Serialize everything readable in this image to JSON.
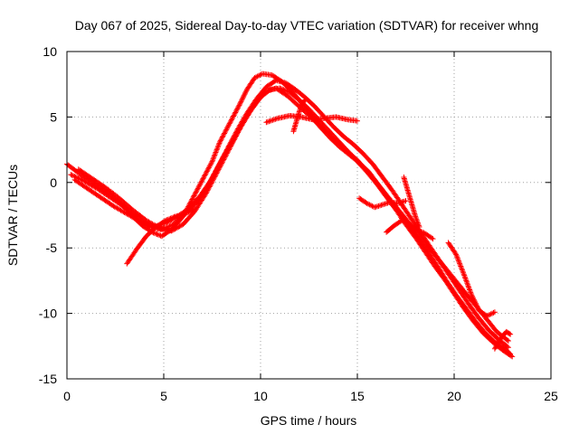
{
  "chart_data": {
    "type": "scatter",
    "title": "Day 067 of 2025, Sidereal Day-to-day VTEC variation (SDTVAR) for receiver whng",
    "xlabel": "GPS time / hours",
    "ylabel": "SDTVAR / TECUs",
    "xlim": [
      0,
      25
    ],
    "ylim": [
      -15,
      10
    ],
    "x_ticks": [
      0,
      5,
      10,
      15,
      20,
      25
    ],
    "y_ticks": [
      -15,
      -10,
      -5,
      0,
      5,
      10
    ],
    "x_tick_labels": [
      "0",
      "5",
      "10",
      "15",
      "20",
      "25"
    ],
    "y_tick_labels": [
      "-15",
      "-10",
      "-5",
      "0",
      "5",
      "10"
    ],
    "grid": true,
    "marker": "+",
    "series": [
      {
        "name": "SDTVAR",
        "color": "#ff0000",
        "tracks": [
          {
            "x": [
              0.0,
              0.8,
              1.5,
              2.2,
              2.9,
              3.4,
              3.9,
              4.4,
              4.9,
              5.4,
              6.0,
              6.5,
              7.0,
              7.5,
              7.9,
              8.4,
              8.9,
              9.3,
              9.7,
              10.1,
              10.6,
              11.1,
              11.6,
              12.1,
              12.6,
              13.1,
              13.6,
              14.1,
              14.6,
              15.1,
              15.6,
              16.1,
              16.6,
              17.1,
              17.6,
              18.1,
              18.6,
              19.1,
              19.6,
              20.1,
              20.6,
              21.1,
              21.6,
              22.1,
              22.6,
              22.9
            ],
            "y": [
              1.4,
              0.5,
              -0.2,
              -0.9,
              -1.8,
              -2.6,
              -3.3,
              -3.8,
              -4.1,
              -3.6,
              -2.6,
              -1.2,
              0.2,
              1.6,
              3.1,
              4.5,
              5.9,
              7.1,
              8.0,
              8.3,
              8.2,
              7.7,
              7.0,
              6.1,
              5.2,
              4.2,
              3.4,
              2.7,
              2.1,
              1.5,
              0.8,
              -0.2,
              -1.2,
              -2.2,
              -3.1,
              -4.2,
              -5.2,
              -6.3,
              -7.5,
              -8.6,
              -9.6,
              -10.6,
              -11.5,
              -12.2,
              -12.7,
              -13.1
            ]
          },
          {
            "x": [
              0.2,
              0.9,
              1.6,
              2.3,
              3.0,
              3.7,
              4.3,
              4.9,
              5.5,
              6.1,
              6.7,
              7.3,
              7.8,
              8.3,
              8.8,
              9.3,
              9.8,
              10.3,
              10.8,
              11.3,
              11.8,
              12.3,
              12.8,
              13.3,
              13.8,
              14.3,
              14.8,
              15.3,
              15.8,
              16.3,
              16.8,
              17.3,
              17.8,
              18.3,
              18.8,
              19.3,
              19.8,
              20.3,
              20.8,
              21.3,
              21.8,
              22.3,
              22.8
            ],
            "y": [
              0.6,
              0.1,
              -0.5,
              -1.2,
              -1.9,
              -2.7,
              -3.4,
              -3.6,
              -3.2,
              -2.4,
              -1.5,
              -0.2,
              1.2,
              2.6,
              4.0,
              5.3,
              6.4,
              7.3,
              7.8,
              7.6,
              7.1,
              6.5,
              5.8,
              5.0,
              4.2,
              3.5,
              2.9,
              2.2,
              1.4,
              0.4,
              -0.6,
              -1.7,
              -2.8,
              -3.9,
              -5.0,
              -6.1,
              -7.2,
              -8.3,
              -9.4,
              -10.4,
              -11.3,
              -12.0,
              -12.6
            ]
          },
          {
            "x": [
              0.4,
              1.0,
              1.7,
              2.4,
              3.1,
              3.8,
              4.5,
              5.1,
              5.7,
              6.3,
              6.9,
              7.5,
              8.0,
              8.5,
              9.0,
              9.5,
              10.0,
              10.5,
              11.0,
              11.5,
              12.0,
              12.5,
              13.0,
              13.5,
              14.0,
              14.5,
              15.0,
              15.5,
              16.0,
              16.5,
              17.0,
              17.5,
              18.0,
              18.5,
              19.0,
              19.5,
              20.0,
              20.5,
              21.0,
              21.5,
              22.0,
              22.5,
              23.0
            ],
            "y": [
              0.2,
              -0.4,
              -1.1,
              -1.8,
              -2.4,
              -3.0,
              -3.4,
              -3.1,
              -2.6,
              -2.0,
              -1.0,
              0.3,
              1.7,
              3.0,
              4.3,
              5.5,
              6.5,
              7.1,
              7.2,
              6.9,
              6.3,
              5.6,
              4.8,
              4.0,
              3.2,
              2.4,
              1.6,
              0.8,
              -0.1,
              -1.1,
              -2.1,
              -3.2,
              -4.2,
              -5.3,
              -6.4,
              -7.4,
              -8.5,
              -9.6,
              -10.6,
              -11.5,
              -12.2,
              -12.8,
              -13.3
            ]
          },
          {
            "x": [
              0.6,
              1.3,
              2.0,
              2.7,
              3.4,
              4.1,
              4.8,
              5.4,
              6.0,
              6.6,
              7.2,
              7.8,
              8.4,
              9.0,
              9.6,
              10.2,
              10.8,
              11.4,
              12.0,
              12.6,
              13.2,
              13.8,
              14.4,
              15.0,
              15.6,
              16.2,
              16.8,
              17.4,
              18.0,
              18.6,
              19.2,
              19.8,
              20.4,
              21.0,
              21.6,
              22.2,
              22.8
            ],
            "y": [
              1.0,
              0.3,
              -0.4,
              -1.2,
              -2.1,
              -2.9,
              -3.5,
              -3.7,
              -3.2,
              -2.2,
              -0.8,
              0.9,
              2.6,
              4.3,
              5.8,
              6.9,
              7.2,
              6.6,
              5.8,
              5.0,
              4.1,
              3.3,
              2.5,
              1.7,
              0.7,
              -0.4,
              -1.5,
              -2.6,
              -3.7,
              -4.8,
              -5.9,
              -7.0,
              -8.1,
              -9.2,
              -10.3,
              -11.4,
              -12.1
            ]
          },
          {
            "x": [
              3.1,
              3.6,
              4.1,
              4.6,
              5.1,
              5.6,
              6.1,
              6.6
            ],
            "y": [
              -6.2,
              -5.1,
              -4.1,
              -3.4,
              -2.9,
              -2.6,
              -2.4,
              -2.0
            ]
          },
          {
            "x": [
              10.3,
              10.9,
              11.5,
              12.1,
              12.7,
              13.3,
              13.9,
              14.5,
              15.0
            ],
            "y": [
              4.6,
              4.9,
              5.1,
              5.0,
              4.8,
              4.9,
              5.0,
              4.8,
              4.7
            ]
          },
          {
            "x": [
              15.1,
              15.5,
              15.9,
              16.3,
              16.7,
              17.1,
              17.5
            ],
            "y": [
              -1.2,
              -1.6,
              -1.9,
              -1.7,
              -1.5,
              -1.6,
              -1.4
            ]
          },
          {
            "x": [
              16.5,
              16.9,
              17.3,
              17.7,
              18.1,
              18.5,
              18.9
            ],
            "y": [
              -3.8,
              -3.3,
              -2.9,
              -3.2,
              -3.6,
              -3.9,
              -4.3
            ]
          },
          {
            "x": [
              11.7,
              11.9,
              12.1,
              12.3
            ],
            "y": [
              3.9,
              4.9,
              5.9,
              6.3
            ]
          },
          {
            "x": [
              17.4,
              17.6,
              17.8,
              18.0,
              18.2
            ],
            "y": [
              0.4,
              -0.6,
              -1.6,
              -2.6,
              -3.4
            ]
          },
          {
            "x": [
              19.7,
              20.1,
              20.5,
              20.9,
              21.3,
              21.7,
              22.1
            ],
            "y": [
              -4.6,
              -5.5,
              -7.0,
              -8.6,
              -9.8,
              -10.2,
              -9.9
            ]
          },
          {
            "x": [
              22.1,
              22.4,
              22.7,
              22.9
            ],
            "y": [
              -12.7,
              -11.9,
              -11.4,
              -11.6
            ]
          }
        ]
      }
    ]
  }
}
